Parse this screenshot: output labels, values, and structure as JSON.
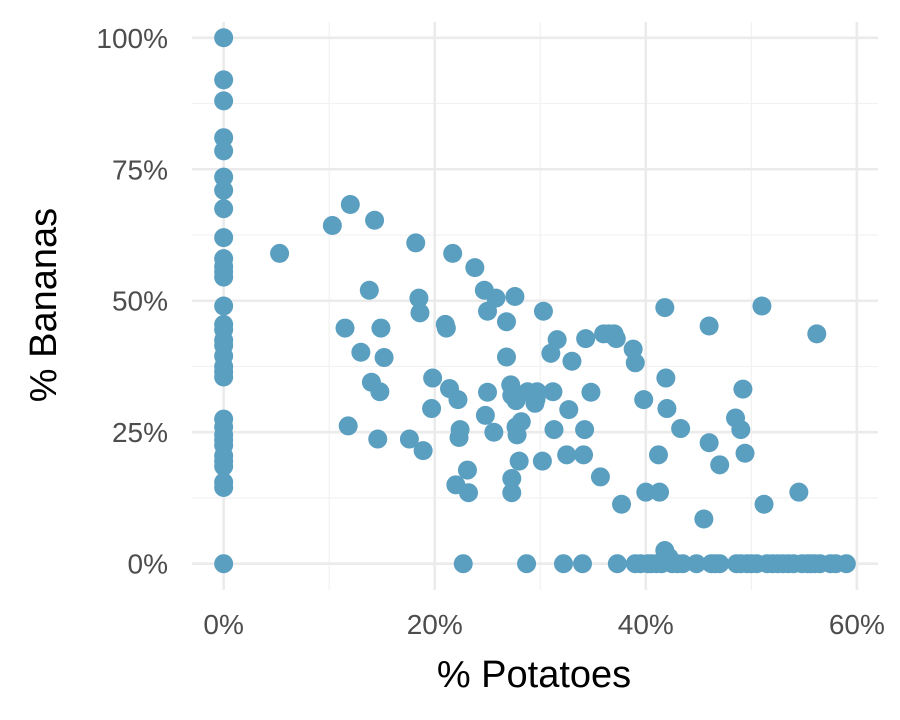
{
  "chart_data": {
    "type": "scatter",
    "xlabel": "% Potatoes",
    "ylabel": "% Bananas",
    "xlim": [
      -0.03,
      0.62
    ],
    "ylim": [
      -0.05,
      1.03
    ],
    "x_ticks": [
      0,
      0.2,
      0.4,
      0.6
    ],
    "x_tick_labels": [
      "0%",
      "20%",
      "40%",
      "60%"
    ],
    "y_ticks": [
      0,
      0.25,
      0.5,
      0.75,
      1.0
    ],
    "y_tick_labels": [
      "0%",
      "25%",
      "50%",
      "75%",
      "100%"
    ],
    "grid": true,
    "point_color": "#5A9EC0",
    "points": [
      [
        0,
        1.0
      ],
      [
        0,
        0.92
      ],
      [
        0,
        0.88
      ],
      [
        0,
        0.81
      ],
      [
        0,
        0.785
      ],
      [
        0,
        0.735
      ],
      [
        0,
        0.71
      ],
      [
        0,
        0.675
      ],
      [
        0,
        0.62
      ],
      [
        0,
        0.58
      ],
      [
        0,
        0.565
      ],
      [
        0,
        0.555
      ],
      [
        0,
        0.545
      ],
      [
        0,
        0.49
      ],
      [
        0,
        0.455
      ],
      [
        0,
        0.445
      ],
      [
        0,
        0.425
      ],
      [
        0,
        0.415
      ],
      [
        0,
        0.395
      ],
      [
        0,
        0.375
      ],
      [
        0,
        0.365
      ],
      [
        0,
        0.355
      ],
      [
        0,
        0.275
      ],
      [
        0,
        0.26
      ],
      [
        0,
        0.245
      ],
      [
        0,
        0.235
      ],
      [
        0,
        0.225
      ],
      [
        0,
        0.205
      ],
      [
        0,
        0.195
      ],
      [
        0,
        0.185
      ],
      [
        0,
        0.155
      ],
      [
        0,
        0.145
      ],
      [
        0,
        0.0
      ],
      [
        0.053,
        0.59
      ],
      [
        0.103,
        0.643
      ],
      [
        0.115,
        0.448
      ],
      [
        0.118,
        0.262
      ],
      [
        0.12,
        0.683
      ],
      [
        0.13,
        0.402
      ],
      [
        0.138,
        0.52
      ],
      [
        0.14,
        0.345
      ],
      [
        0.143,
        0.653
      ],
      [
        0.146,
        0.237
      ],
      [
        0.148,
        0.327
      ],
      [
        0.149,
        0.448
      ],
      [
        0.152,
        0.392
      ],
      [
        0.176,
        0.237
      ],
      [
        0.182,
        0.61
      ],
      [
        0.185,
        0.505
      ],
      [
        0.186,
        0.477
      ],
      [
        0.189,
        0.215
      ],
      [
        0.197,
        0.295
      ],
      [
        0.198,
        0.353
      ],
      [
        0.21,
        0.455
      ],
      [
        0.211,
        0.448
      ],
      [
        0.214,
        0.333
      ],
      [
        0.217,
        0.59
      ],
      [
        0.22,
        0.15
      ],
      [
        0.222,
        0.312
      ],
      [
        0.223,
        0.24
      ],
      [
        0.224,
        0.255
      ],
      [
        0.227,
        0.0
      ],
      [
        0.231,
        0.178
      ],
      [
        0.232,
        0.135
      ],
      [
        0.238,
        0.563
      ],
      [
        0.247,
        0.52
      ],
      [
        0.248,
        0.282
      ],
      [
        0.25,
        0.326
      ],
      [
        0.25,
        0.48
      ],
      [
        0.256,
        0.25
      ],
      [
        0.258,
        0.505
      ],
      [
        0.268,
        0.46
      ],
      [
        0.268,
        0.393
      ],
      [
        0.272,
        0.34
      ],
      [
        0.273,
        0.32
      ],
      [
        0.273,
        0.162
      ],
      [
        0.273,
        0.135
      ],
      [
        0.276,
        0.508
      ],
      [
        0.277,
        0.31
      ],
      [
        0.277,
        0.26
      ],
      [
        0.278,
        0.245
      ],
      [
        0.28,
        0.195
      ],
      [
        0.282,
        0.27
      ],
      [
        0.287,
        0.0
      ],
      [
        0.288,
        0.327
      ],
      [
        0.295,
        0.305
      ],
      [
        0.296,
        0.313
      ],
      [
        0.297,
        0.327
      ],
      [
        0.302,
        0.195
      ],
      [
        0.303,
        0.48
      ],
      [
        0.31,
        0.4
      ],
      [
        0.312,
        0.327
      ],
      [
        0.313,
        0.255
      ],
      [
        0.316,
        0.426
      ],
      [
        0.322,
        0.0
      ],
      [
        0.325,
        0.207
      ],
      [
        0.327,
        0.293
      ],
      [
        0.33,
        0.385
      ],
      [
        0.34,
        0.0
      ],
      [
        0.341,
        0.207
      ],
      [
        0.342,
        0.255
      ],
      [
        0.343,
        0.428
      ],
      [
        0.348,
        0.326
      ],
      [
        0.357,
        0.165
      ],
      [
        0.36,
        0.437
      ],
      [
        0.365,
        0.437
      ],
      [
        0.37,
        0.437
      ],
      [
        0.372,
        0.428
      ],
      [
        0.373,
        0.0
      ],
      [
        0.377,
        0.113
      ],
      [
        0.388,
        0.408
      ],
      [
        0.39,
        0.382
      ],
      [
        0.39,
        0.0
      ],
      [
        0.395,
        0.0
      ],
      [
        0.398,
        0.312
      ],
      [
        0.4,
        0.136
      ],
      [
        0.402,
        0.0
      ],
      [
        0.405,
        0.0
      ],
      [
        0.41,
        0.0
      ],
      [
        0.412,
        0.207
      ],
      [
        0.413,
        0.136
      ],
      [
        0.415,
        0.0
      ],
      [
        0.418,
        0.487
      ],
      [
        0.418,
        0.025
      ],
      [
        0.419,
        0.353
      ],
      [
        0.42,
        0.295
      ],
      [
        0.422,
        0.012
      ],
      [
        0.425,
        0.0
      ],
      [
        0.43,
        0.0
      ],
      [
        0.433,
        0.257
      ],
      [
        0.435,
        0.0
      ],
      [
        0.448,
        0.0
      ],
      [
        0.455,
        0.085
      ],
      [
        0.46,
        0.452
      ],
      [
        0.46,
        0.23
      ],
      [
        0.462,
        0.0
      ],
      [
        0.466,
        0.0
      ],
      [
        0.47,
        0.188
      ],
      [
        0.47,
        0.0
      ],
      [
        0.485,
        0.277
      ],
      [
        0.486,
        0.0
      ],
      [
        0.49,
        0.255
      ],
      [
        0.49,
        0.0
      ],
      [
        0.492,
        0.332
      ],
      [
        0.494,
        0.21
      ],
      [
        0.496,
        0.0
      ],
      [
        0.5,
        0.0
      ],
      [
        0.505,
        0.0
      ],
      [
        0.51,
        0.49
      ],
      [
        0.512,
        0.113
      ],
      [
        0.515,
        0.0
      ],
      [
        0.52,
        0.0
      ],
      [
        0.525,
        0.0
      ],
      [
        0.53,
        0.0
      ],
      [
        0.535,
        0.0
      ],
      [
        0.54,
        0.0
      ],
      [
        0.545,
        0.136
      ],
      [
        0.548,
        0.0
      ],
      [
        0.553,
        0.0
      ],
      [
        0.556,
        0.0
      ],
      [
        0.56,
        0.0
      ],
      [
        0.562,
        0.437
      ],
      [
        0.565,
        0.0
      ],
      [
        0.575,
        0.0
      ],
      [
        0.58,
        0.0
      ],
      [
        0.59,
        0.0
      ]
    ]
  }
}
